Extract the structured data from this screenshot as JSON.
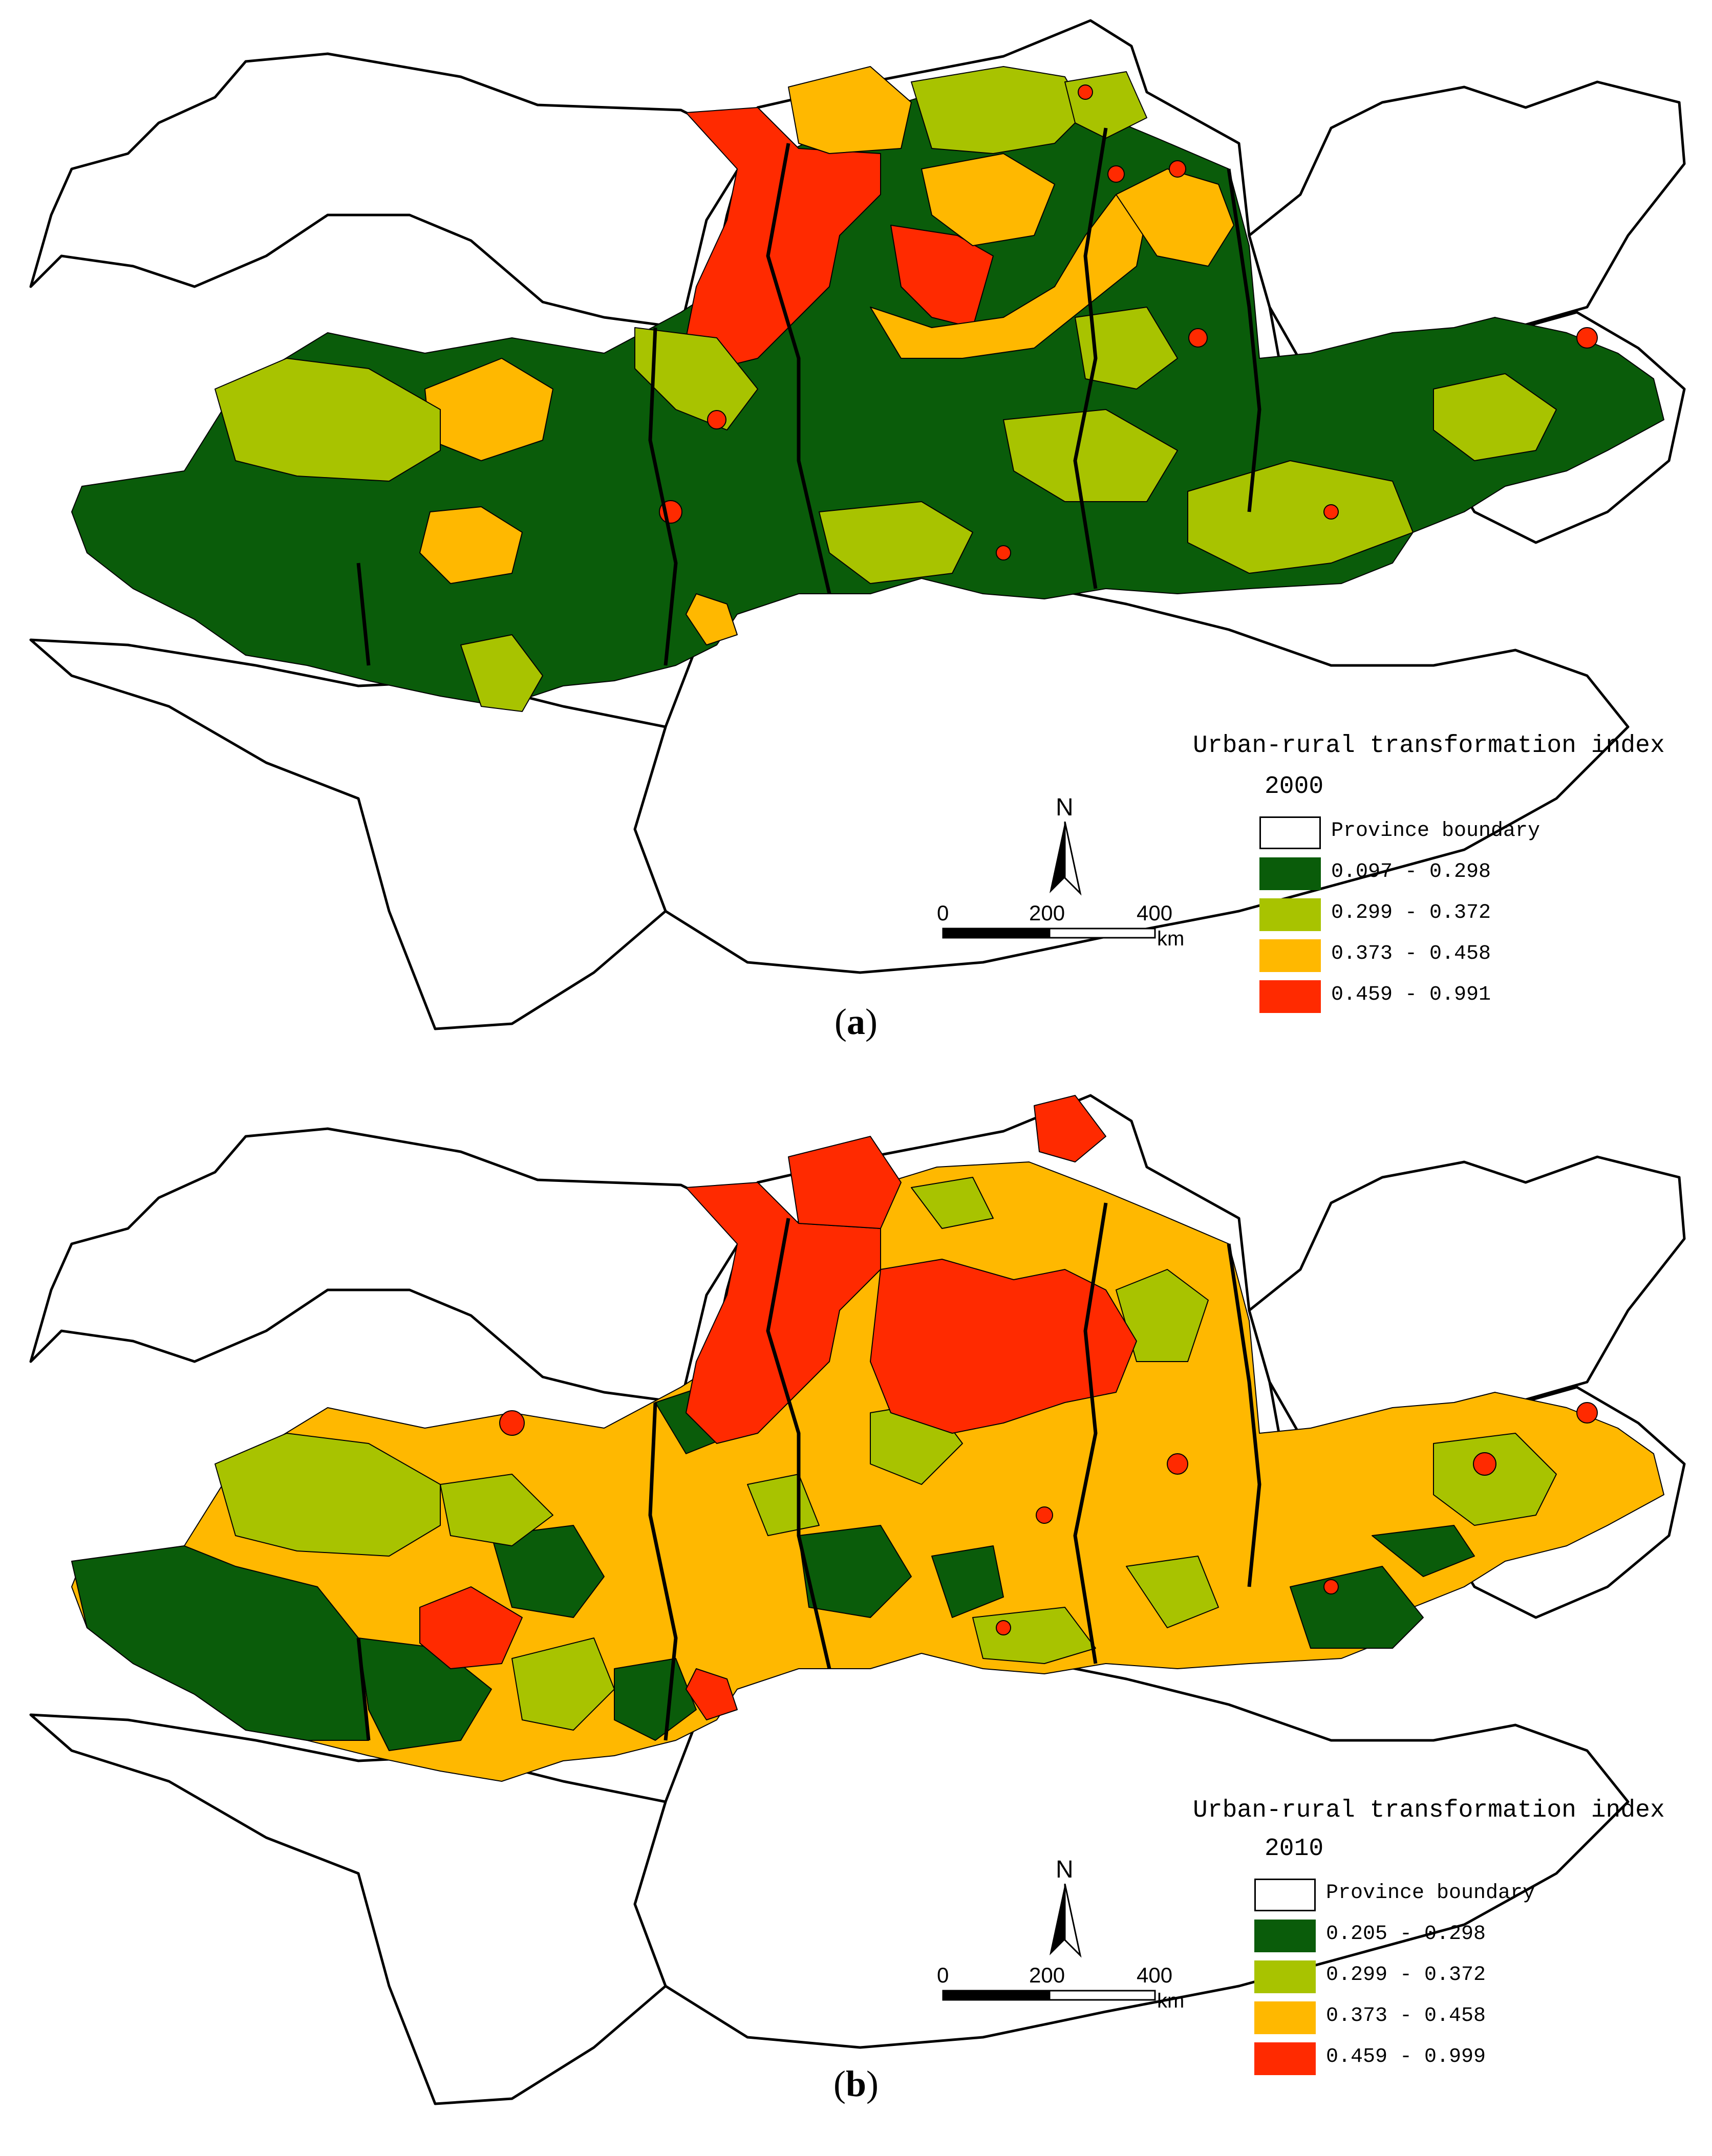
{
  "colors": {
    "class1": "#0a5c0a",
    "class2": "#a8c300",
    "class3": "#ffb800",
    "class4": "#ff2a00",
    "boundary": "#000000",
    "background": "#ffffff"
  },
  "panels": [
    {
      "id": "a",
      "label": "a",
      "legend": {
        "title": "Urban-rural transformation index",
        "year": "2000",
        "items": [
          {
            "label": "Province boundary",
            "color": "#ffffff"
          },
          {
            "label": "0.097 - 0.298",
            "color": "#0a5c0a"
          },
          {
            "label": "0.299 - 0.372",
            "color": "#a8c300"
          },
          {
            "label": "0.373 - 0.458",
            "color": "#ffb800"
          },
          {
            "label": "0.459 - 0.991",
            "color": "#ff2a00"
          }
        ]
      },
      "north": "N",
      "scale": {
        "ticks": [
          "0",
          "200",
          "400"
        ],
        "unit": "km"
      }
    },
    {
      "id": "b",
      "label": "b",
      "legend": {
        "title": "Urban-rural transformation index",
        "year": "2010",
        "items": [
          {
            "label": "Province boundary",
            "color": "#ffffff"
          },
          {
            "label": "0.205 - 0.298",
            "color": "#0a5c0a"
          },
          {
            "label": "0.299 - 0.372",
            "color": "#a8c300"
          },
          {
            "label": "0.373 - 0.458",
            "color": "#ffb800"
          },
          {
            "label": "0.459 - 0.999",
            "color": "#ff2a00"
          }
        ]
      },
      "north": "N",
      "scale": {
        "ticks": [
          "0",
          "200",
          "400"
        ],
        "unit": "km"
      }
    }
  ]
}
